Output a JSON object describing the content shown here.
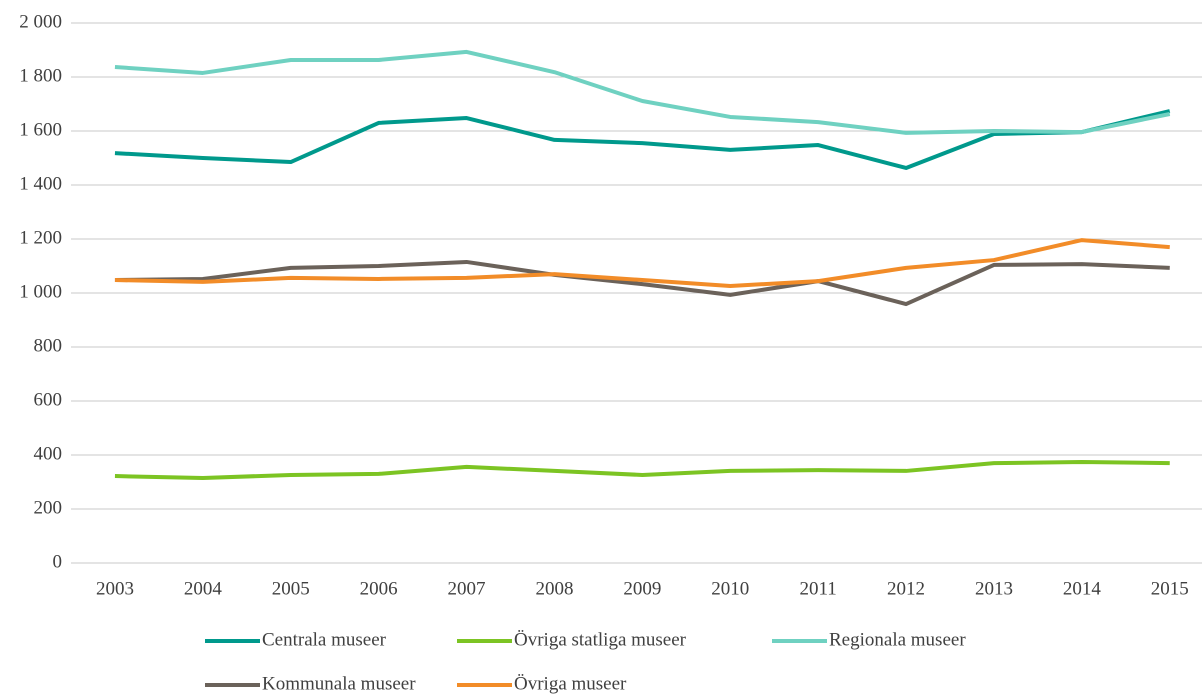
{
  "chart_data": {
    "type": "line",
    "categories": [
      "2003",
      "2004",
      "2005",
      "2006",
      "2007",
      "2008",
      "2009",
      "2010",
      "2011",
      "2012",
      "2013",
      "2014",
      "2015"
    ],
    "series": [
      {
        "name": "Centrala museer",
        "color": "#00998c",
        "values": [
          1518,
          1500,
          1485,
          1630,
          1648,
          1567,
          1555,
          1530,
          1548,
          1463,
          1589,
          1596,
          1674
        ]
      },
      {
        "name": "Övriga statliga museer",
        "color": "#7cc423",
        "values": [
          322,
          315,
          326,
          330,
          356,
          341,
          326,
          341,
          344,
          341,
          370,
          374,
          370
        ]
      },
      {
        "name": "Regionala museer",
        "color": "#6fd1c1",
        "values": [
          1837,
          1815,
          1863,
          1863,
          1893,
          1818,
          1711,
          1652,
          1633,
          1593,
          1600,
          1596,
          1663
        ]
      },
      {
        "name": "Kommunala museer",
        "color": "#6b625a",
        "values": [
          1048,
          1052,
          1093,
          1100,
          1115,
          1067,
          1033,
          993,
          1044,
          959,
          1104,
          1107,
          1093
        ]
      },
      {
        "name": "Övriga museer",
        "color": "#f28c28",
        "values": [
          1048,
          1041,
          1056,
          1052,
          1056,
          1070,
          1048,
          1026,
          1044,
          1093,
          1122,
          1196,
          1170
        ]
      }
    ],
    "ylim": [
      0,
      2000
    ],
    "yticks": [
      0,
      200,
      400,
      600,
      800,
      {
        "value": 1000,
        "label": "1 000"
      },
      {
        "value": 1200,
        "label": "1 200"
      },
      {
        "value": 1400,
        "label": "1 400"
      },
      {
        "value": 1600,
        "label": "1 600"
      },
      {
        "value": 1800,
        "label": "1 800"
      },
      {
        "value": 2000,
        "label": "2 000"
      }
    ],
    "grid": true
  }
}
